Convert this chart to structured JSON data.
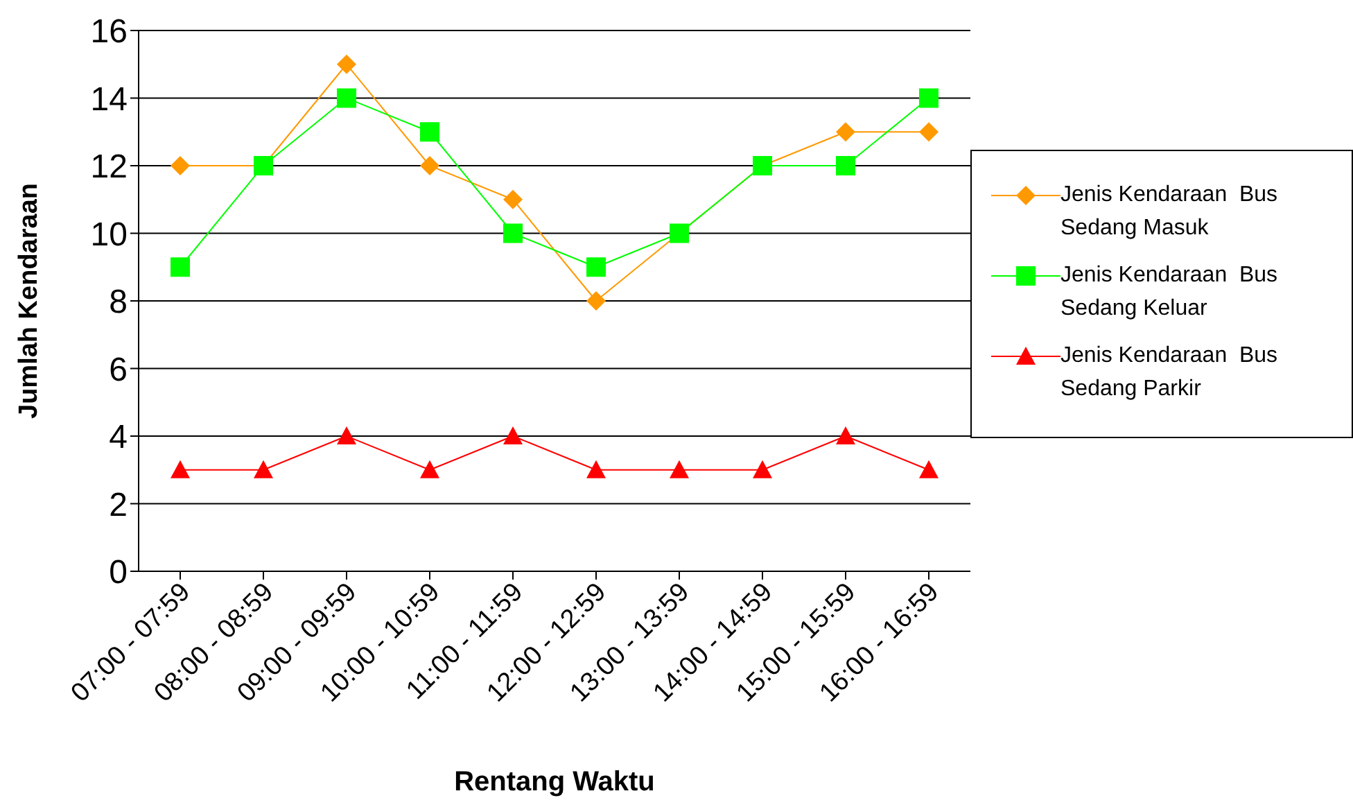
{
  "chart_data": {
    "type": "line",
    "xlabel": "Rentang Waktu",
    "ylabel": "Jumlah Kendaraan",
    "categories": [
      "07:00 - 07:59",
      "08:00 - 08:59",
      "09:00 - 09:59",
      "10:00 - 10:59",
      "11:00 - 11:59",
      "12:00 - 12:59",
      "13:00 - 13:59",
      "14:00 - 14:59",
      "15:00 - 15:59",
      "16:00 - 16:59"
    ],
    "series": [
      {
        "name": "Jenis Kendaraan  Bus Sedang Masuk",
        "color": "#ff9900",
        "marker": "diamond",
        "values": [
          12,
          12,
          15,
          12,
          11,
          8,
          10,
          12,
          13,
          13
        ]
      },
      {
        "name": "Jenis Kendaraan  Bus Sedang Keluar",
        "color": "#00ff00",
        "marker": "square",
        "values": [
          9,
          12,
          14,
          13,
          10,
          9,
          10,
          12,
          12,
          14
        ]
      },
      {
        "name": "Jenis Kendaraan  Bus Sedang Parkir",
        "color": "#ff0000",
        "marker": "triangle",
        "values": [
          3,
          3,
          4,
          3,
          4,
          3,
          3,
          3,
          4,
          3
        ]
      }
    ],
    "ylim": [
      0,
      16
    ],
    "yticks": [
      0,
      2,
      4,
      6,
      8,
      10,
      12,
      14,
      16
    ],
    "grid": "y",
    "legend": "right",
    "line_style": "solid"
  }
}
